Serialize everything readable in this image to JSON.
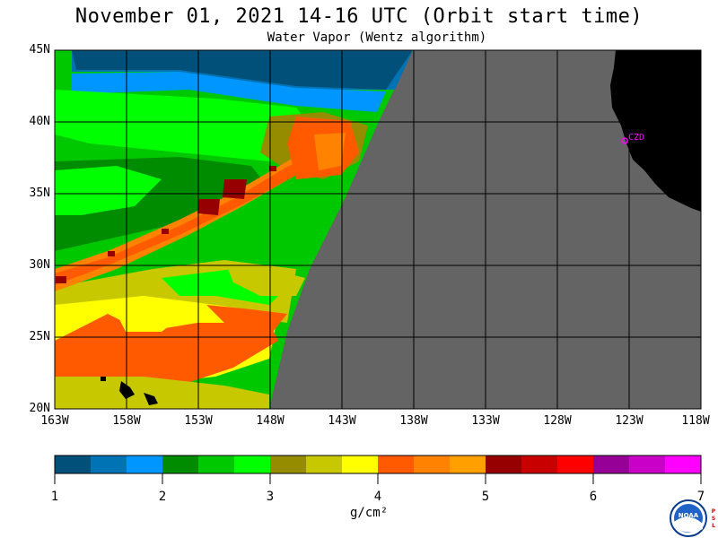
{
  "title": "November 01, 2021  14-16 UTC  (Orbit start time)",
  "subtitle": "Water Vapor (Wentz algorithm)",
  "lat_labels": [
    "45N",
    "40N",
    "35N",
    "30N",
    "25N",
    "20N"
  ],
  "lon_labels": [
    "163W",
    "158W",
    "153W",
    "148W",
    "143W",
    "138W",
    "133W",
    "128W",
    "123W",
    "118W"
  ],
  "station": "CZD",
  "colorbar": {
    "ticks": [
      "1",
      "2",
      "3",
      "4",
      "5",
      "6",
      "7"
    ],
    "units": "g/cm²",
    "colors": [
      "#00507a",
      "#0073b5",
      "#0096ff",
      "#008c00",
      "#00c800",
      "#00ff00",
      "#968c00",
      "#c8c800",
      "#ffff00",
      "#ff5a00",
      "#ff8200",
      "#ffa000",
      "#960000",
      "#c80000",
      "#ff0000",
      "#960096",
      "#c800c8",
      "#ff00ff"
    ]
  },
  "map_colors": {
    "no_data": "#646464",
    "land": "#000000"
  },
  "logo_text": "NOAA",
  "side_text": "PSL"
}
